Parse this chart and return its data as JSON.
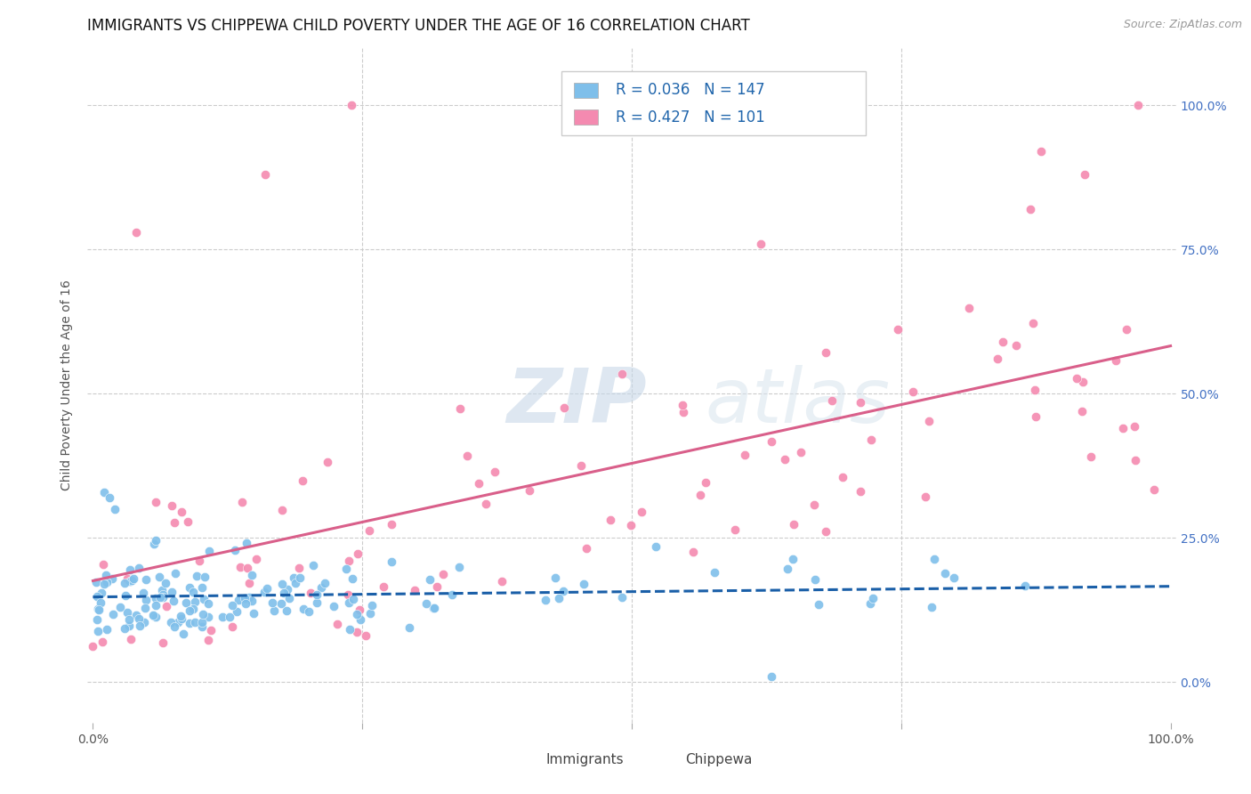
{
  "title": "IMMIGRANTS VS CHIPPEWA CHILD POVERTY UNDER THE AGE OF 16 CORRELATION CHART",
  "source": "Source: ZipAtlas.com",
  "ylabel": "Child Poverty Under the Age of 16",
  "yticks": [
    "0.0%",
    "25.0%",
    "50.0%",
    "75.0%",
    "100.0%"
  ],
  "ytick_vals": [
    0.0,
    0.25,
    0.5,
    0.75,
    1.0
  ],
  "legend_label1": "Immigrants",
  "legend_label2": "Chippewa",
  "R1": 0.036,
  "N1": 147,
  "R2": 0.427,
  "N2": 101,
  "color_immigrants": "#7fbfea",
  "color_chippewa": "#f48ab0",
  "color_immigrants_line": "#1a5fa8",
  "color_chippewa_line": "#d95f8a",
  "background_color": "#ffffff",
  "watermark_zip": "ZIP",
  "watermark_atlas": "atlas",
  "title_fontsize": 12,
  "axis_label_fontsize": 10,
  "tick_fontsize": 10
}
